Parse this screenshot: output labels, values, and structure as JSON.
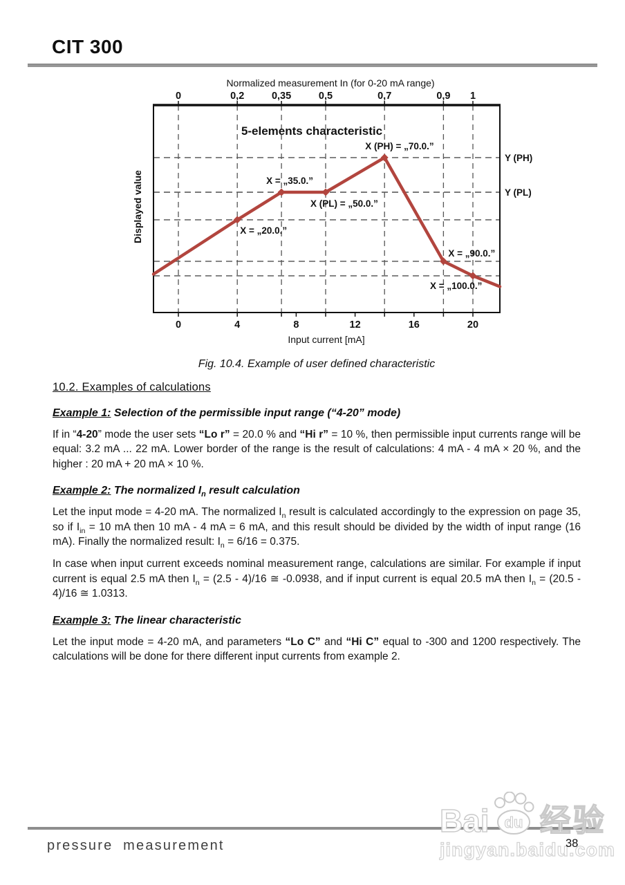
{
  "header": {
    "title": "CIT 300"
  },
  "figure": {
    "caption": "Fig. 10.4. Example of user defined characteristic"
  },
  "section": {
    "heading": "10.2. Examples of calculations"
  },
  "examples": [
    {
      "label": "Example 1:",
      "title_runs": [
        {
          "t": " Selection of the permissible input range (“4-20” mode)"
        }
      ],
      "paragraphs": [
        [
          {
            "t": "If in “"
          },
          {
            "t": "4-20",
            "b": true
          },
          {
            "t": "” mode the user sets "
          },
          {
            "t": "“Lo r”",
            "b": true
          },
          {
            "t": " = 20.0 % and "
          },
          {
            "t": "“Hi r”",
            "b": true
          },
          {
            "t": " = 10 %, then permissible input currents range will be equal: 3.2 mA ... 22 mA. Lower border of the range is the result of calculations: 4 mA - 4 mA × 20 %, and the higher : 20 mA + 20 mA × 10 %."
          }
        ]
      ]
    },
    {
      "label": "Example 2:",
      "title_runs": [
        {
          "t": " The normalized I"
        },
        {
          "t": "n",
          "sub": true
        },
        {
          "t": " result calculation"
        }
      ],
      "paragraphs": [
        [
          {
            "t": "Let the input mode = 4-20 mA. The normalized I"
          },
          {
            "t": "n",
            "sub": true
          },
          {
            "t": " result is calculated accordingly to the expression on page 35, so if I"
          },
          {
            "t": "in",
            "sub": true
          },
          {
            "t": " = 10 mA then 10 mA - 4 mA = 6 mA, and this result should be divided by the width of input range (16 mA). Finally the normalized result: I"
          },
          {
            "t": "n",
            "sub": true
          },
          {
            "t": " = 6/16 = 0.375."
          }
        ],
        [
          {
            "t": "In case when input current exceeds nominal measurement range, calculations are similar. For example if input current is equal 2.5 mA then I"
          },
          {
            "t": "n",
            "sub": true
          },
          {
            "t": " = (2.5 - 4)/16 ≅ -0.0938, and if input current is equal 20.5 mA then I"
          },
          {
            "t": "n",
            "sub": true
          },
          {
            "t": " = (20.5 - 4)/16 ≅ 1.0313."
          }
        ]
      ]
    },
    {
      "label": "Example 3:",
      "title_runs": [
        {
          "t": " The linear characteristic"
        }
      ],
      "paragraphs": [
        [
          {
            "t": "Let the input mode = 4-20 mA, and parameters "
          },
          {
            "t": "“Lo C”",
            "b": true
          },
          {
            "t": " and "
          },
          {
            "t": "“Hi C”",
            "b": true
          },
          {
            "t": " equal to -300 and 1200 respectively. The calculations will be done for there different input currents from example 2."
          }
        ]
      ]
    }
  ],
  "footer": {
    "brand": "pressure measurement",
    "page_number": "38"
  },
  "watermark": {
    "brand_left": "Bai",
    "brand_right": "du",
    "brand_cn": "经验",
    "url": "jingyan.baidu.com"
  },
  "chart_data": {
    "type": "line",
    "title": "5-elements characteristic",
    "top_axis": {
      "label": "Normalized measurement In (for 0-20 mA range)",
      "ticks": [
        {
          "label": "0",
          "mA": 0
        },
        {
          "label": "0,2",
          "mA": 4
        },
        {
          "label": "0,35",
          "mA": 7
        },
        {
          "label": "0,5",
          "mA": 10
        },
        {
          "label": "0,7",
          "mA": 14
        },
        {
          "label": "0,9",
          "mA": 18
        },
        {
          "label": "1",
          "mA": 20
        }
      ]
    },
    "bottom_axis": {
      "label": "Input current [mA]",
      "ticks": [
        {
          "label": "0",
          "mA": 0
        },
        {
          "label": "4",
          "mA": 4
        },
        {
          "label": "8",
          "mA": 8
        },
        {
          "label": "12",
          "mA": 12
        },
        {
          "label": "16",
          "mA": 16
        },
        {
          "label": "20",
          "mA": 20
        }
      ],
      "tick_marks_mA": [
        0,
        4,
        7,
        8,
        10,
        12,
        14,
        16,
        18,
        20
      ]
    },
    "left_axis": {
      "label": "Displayed value"
    },
    "right_axis_labels": [
      {
        "label": "Y (PH)",
        "y_rel": 0.747
      },
      {
        "label": "Y (PL)",
        "y_rel": 0.58
      }
    ],
    "h_gridlines_y_rel": [
      0.747,
      0.58,
      0.447,
      0.247,
      0.177
    ],
    "v_gridlines_mA": [
      0,
      4,
      7,
      10,
      14,
      18,
      20
    ],
    "x_range_mA": [
      -1.69,
      21.83
    ],
    "line_color": "#b2453e",
    "points": [
      {
        "mA": -1.69,
        "y_rel": 0.185
      },
      {
        "mA": 4,
        "y_rel": 0.447,
        "marker": true,
        "label": "X = „20.0.”"
      },
      {
        "mA": 7,
        "y_rel": 0.58,
        "marker": true,
        "label": "X = „35.0.”"
      },
      {
        "mA": 10,
        "y_rel": 0.58,
        "marker": true,
        "label": "X (PL) = „50.0.”"
      },
      {
        "mA": 14,
        "y_rel": 0.747,
        "marker": true,
        "label": "X (PH) = „70.0.”"
      },
      {
        "mA": 18,
        "y_rel": 0.247,
        "marker": true,
        "label": "X = „90.0.”"
      },
      {
        "mA": 20,
        "y_rel": 0.177,
        "marker": true,
        "label": "X = „100.0.”"
      },
      {
        "mA": 21.83,
        "y_rel": 0.125
      }
    ]
  }
}
